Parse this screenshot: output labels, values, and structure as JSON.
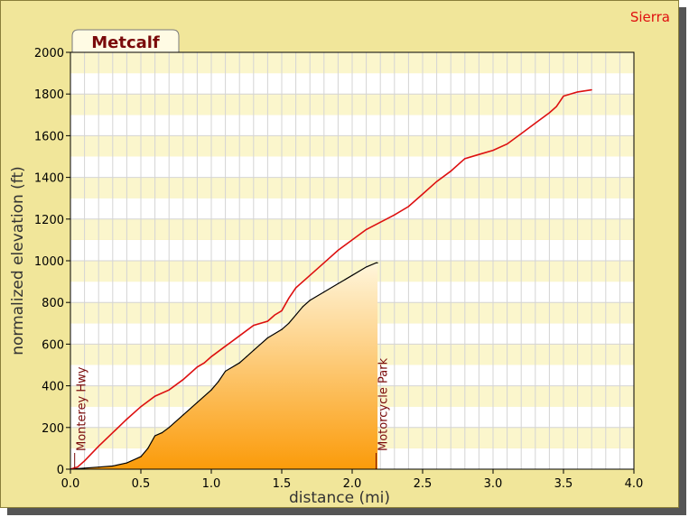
{
  "chart_data": {
    "type": "line",
    "title": "Metcalf",
    "corner_label": "Sierra",
    "xlabel": "distance (mi)",
    "ylabel": "normalized elevation (ft)",
    "xlim": [
      0,
      4
    ],
    "ylim": [
      0,
      2000
    ],
    "xticks": [
      "0.0",
      "0.5",
      "1.0",
      "1.5",
      "2.0",
      "2.5",
      "3.0",
      "3.5",
      "4.0"
    ],
    "yticks": [
      "0",
      "200",
      "400",
      "600",
      "800",
      "1000",
      "1200",
      "1400",
      "1600",
      "1800",
      "2000"
    ],
    "grid": true,
    "series": [
      {
        "name": "Sierra",
        "color": "#dd1010",
        "style": "line",
        "x": [
          0,
          0.05,
          0.1,
          0.2,
          0.3,
          0.4,
          0.5,
          0.6,
          0.7,
          0.8,
          0.9,
          0.95,
          1.0,
          1.1,
          1.2,
          1.3,
          1.4,
          1.45,
          1.5,
          1.55,
          1.6,
          1.7,
          1.8,
          1.9,
          2.0,
          2.1,
          2.2,
          2.3,
          2.4,
          2.5,
          2.6,
          2.7,
          2.8,
          2.9,
          3.0,
          3.1,
          3.2,
          3.3,
          3.4,
          3.45,
          3.5,
          3.6,
          3.7
        ],
        "y": [
          0,
          10,
          40,
          110,
          175,
          240,
          300,
          350,
          380,
          430,
          490,
          510,
          540,
          590,
          640,
          690,
          710,
          740,
          760,
          820,
          870,
          930,
          990,
          1050,
          1100,
          1150,
          1185,
          1220,
          1260,
          1320,
          1380,
          1430,
          1490,
          1510,
          1530,
          1560,
          1610,
          1660,
          1710,
          1740,
          1790,
          1810,
          1820
        ]
      },
      {
        "name": "Metcalf",
        "color": "#000000",
        "fill_top": "#fff6dc",
        "fill_bottom": "#fb9b0a",
        "style": "area",
        "x": [
          0,
          0.1,
          0.2,
          0.3,
          0.4,
          0.5,
          0.55,
          0.6,
          0.65,
          0.7,
          0.8,
          0.9,
          1.0,
          1.05,
          1.1,
          1.2,
          1.25,
          1.3,
          1.4,
          1.5,
          1.55,
          1.6,
          1.65,
          1.7,
          1.8,
          1.9,
          2.0,
          2.1,
          2.17,
          2.18
        ],
        "y": [
          0,
          5,
          10,
          15,
          30,
          60,
          100,
          160,
          175,
          200,
          260,
          320,
          380,
          420,
          470,
          510,
          540,
          570,
          630,
          670,
          700,
          740,
          780,
          810,
          850,
          890,
          930,
          970,
          990,
          990
        ]
      }
    ],
    "markers": [
      {
        "label": "Monterey Hwy",
        "x": 0.03
      },
      {
        "label": "Motorcycle Park",
        "x": 2.17
      }
    ]
  }
}
